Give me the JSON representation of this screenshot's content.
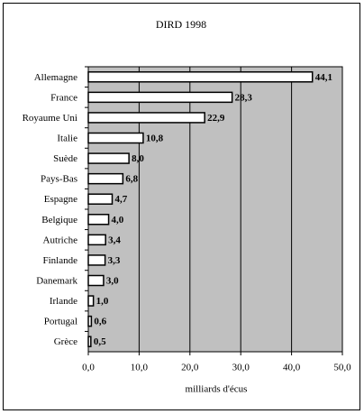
{
  "chart_data": {
    "type": "bar",
    "orientation": "horizontal",
    "title": "DIRD 1998",
    "categories": [
      "Allemagne",
      "France",
      "Royaume Uni",
      "Italie",
      "Suède",
      "Pays-Bas",
      "Espagne",
      "Belgique",
      "Autriche",
      "Finlande",
      "Danemark",
      "Irlande",
      "Portugal",
      "Grèce"
    ],
    "values": [
      44.1,
      28.3,
      22.9,
      10.8,
      8.0,
      6.8,
      4.7,
      4.0,
      3.4,
      3.3,
      3.0,
      1.0,
      0.6,
      0.5
    ],
    "value_labels": [
      "44,1",
      "28,3",
      "22,9",
      "10,8",
      "8,0",
      "6,8",
      "4,7",
      "4,0",
      "3,4",
      "3,3",
      "3,0",
      "1,0",
      "0,6",
      "0,5"
    ],
    "color": "#ffffff",
    "plot_background": "#c0c0c0",
    "xlabel": "milliards d'écus",
    "xlim": [
      0,
      50
    ],
    "xticks": [
      {
        "value": 0,
        "label": "0,0"
      },
      {
        "value": 10,
        "label": "10,0"
      },
      {
        "value": 20,
        "label": "20,0"
      },
      {
        "value": 30,
        "label": "30,0"
      },
      {
        "value": 40,
        "label": "40,0"
      },
      {
        "value": 50,
        "label": "50,0"
      }
    ],
    "grid": true
  }
}
